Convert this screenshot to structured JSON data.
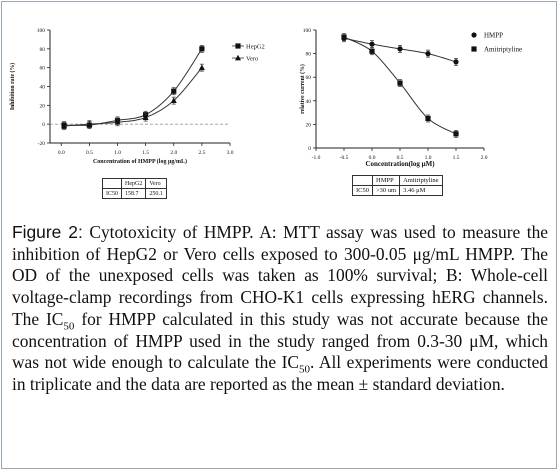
{
  "panel_a": {
    "table": {
      "header": [
        "",
        "HepG2",
        "Vero"
      ],
      "row": [
        "IC50",
        "158.7",
        "250.1"
      ]
    }
  },
  "panel_b": {
    "table": {
      "header": [
        "",
        "HMPP",
        "Amitriptyline"
      ],
      "row": [
        "IC50",
        ">30 um",
        "3.46 μM"
      ]
    }
  },
  "caption": {
    "label": "Figure 2:",
    "text_1": " Cytotoxicity of HMPP. A: MTT assay was used to measure the inhibition of HepG2 or Vero cells exposed to 300-0.05 μg/mL HMPP. The OD of the unexposed cells was taken as 100% survival; B: Whole-cell voltage-clamp recordings from CHO-K1 cells expressing hERG channels. The IC",
    "sub_1": "50",
    "text_2": " for HMPP calculated in this study was not accurate because the concentration of HMPP used in the study ranged from 0.3-30 μM, which was not wide enough to calculate the IC",
    "sub_2": "50",
    "text_3": ". All experiments were conducted in triplicate and the data are reported as the mean ± standard deviation."
  },
  "chart_data": [
    {
      "type": "line",
      "title": "",
      "xlabel": "Concentration of HMPP (log μg/mL)",
      "ylabel": "Inhibition rate (%)",
      "xlim": [
        -0.2,
        3.0
      ],
      "ylim": [
        -20,
        100
      ],
      "xticks": [
        "0.0",
        "0.5",
        "1.0",
        "1.5",
        "2.0",
        "2.5",
        "3.0"
      ],
      "yticks": [
        "-20",
        "0",
        "20",
        "40",
        "60",
        "80",
        "100"
      ],
      "grid": false,
      "legend_position": "top-right",
      "baseline": 0,
      "series": [
        {
          "name": "HepG2",
          "marker": "square",
          "x": [
            0.05,
            0.5,
            1.0,
            1.5,
            2.0,
            2.5
          ],
          "y": [
            -1,
            -1,
            4,
            10,
            35,
            80
          ]
        },
        {
          "name": "Vero",
          "marker": "triangle",
          "x": [
            0.05,
            0.5,
            1.0,
            1.5,
            2.0,
            2.5
          ],
          "y": [
            -2,
            0,
            2,
            7,
            25,
            60
          ]
        }
      ]
    },
    {
      "type": "line",
      "title": "",
      "xlabel": "Concentration(log μM)",
      "ylabel": "relative current (%)",
      "xlim": [
        -1.0,
        2.0
      ],
      "ylim": [
        0,
        100
      ],
      "xticks": [
        "-1.0",
        "-0.5",
        "0.0",
        "0.5",
        "1.0",
        "1.5",
        "2.0"
      ],
      "yticks": [
        "0",
        "20",
        "40",
        "60",
        "80",
        "100"
      ],
      "grid": false,
      "legend_position": "top-right",
      "series": [
        {
          "name": "HMPP",
          "marker": "circle",
          "x": [
            -0.5,
            0.0,
            0.5,
            1.0,
            1.5
          ],
          "y": [
            93,
            88,
            84,
            80,
            73
          ]
        },
        {
          "name": "Amitriptyline",
          "marker": "square",
          "x": [
            -0.5,
            0.0,
            0.5,
            1.0,
            1.5
          ],
          "y": [
            94,
            82,
            55,
            25,
            12
          ]
        }
      ]
    }
  ]
}
